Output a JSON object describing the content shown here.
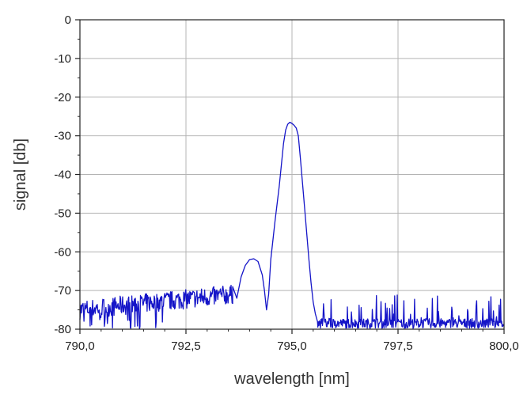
{
  "chart_data": {
    "type": "line",
    "title": "",
    "xlabel": "wavelength [nm]",
    "ylabel": "signal [db]",
    "xlim": [
      790.0,
      800.0
    ],
    "ylim": [
      -80,
      0
    ],
    "grid": true,
    "x_ticks": [
      790.0,
      792.5,
      795.0,
      797.5,
      800.0
    ],
    "x_tick_labels": [
      "790,0",
      "792,5",
      "795,0",
      "797,5",
      "800,0"
    ],
    "y_ticks": [
      0,
      -10,
      -20,
      -30,
      -40,
      -50,
      -60,
      -70,
      -80
    ],
    "y_tick_labels": [
      "0",
      "-10",
      "-20",
      "-30",
      "-40",
      "-50",
      "-60",
      "-70",
      "-80"
    ],
    "series": [
      {
        "name": "signal",
        "color": "#1515c8",
        "noise_floor": {
          "x_start": 790.0,
          "x_end": 793.6,
          "mean_db": [
            -75,
            -71
          ],
          "spike_min_db": -80
        },
        "x": [
          793.6,
          793.7,
          793.8,
          793.9,
          794.0,
          794.1,
          794.2,
          794.3,
          794.35,
          794.4,
          794.45,
          794.5,
          794.6,
          794.7,
          794.8,
          794.85,
          794.9,
          794.95,
          795.0,
          795.05,
          795.1,
          795.15,
          795.2,
          795.3,
          795.4,
          795.45,
          795.5,
          795.55,
          795.6
        ],
        "y": [
          -69.0,
          -72.0,
          -66.5,
          -63.5,
          -62.0,
          -61.8,
          -62.5,
          -66.0,
          -70.0,
          -75.0,
          -71.0,
          -62.0,
          -52.0,
          -43.0,
          -32.0,
          -28.5,
          -27.0,
          -26.5,
          -26.8,
          -27.3,
          -28.0,
          -30.0,
          -36.0,
          -49.0,
          -62.0,
          -68.0,
          -73.0,
          -76.0,
          -78.0
        ],
        "tail_noise": {
          "x_start": 795.6,
          "x_end": 800.0,
          "mean_db": -78.5,
          "spike_max_db": -70
        }
      }
    ]
  }
}
